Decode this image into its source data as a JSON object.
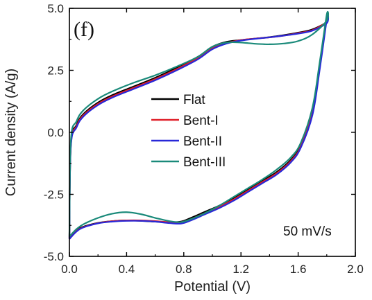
{
  "chart_data": {
    "type": "line",
    "title": "",
    "panel_label": "(f)",
    "xlabel": "Potential (V)",
    "ylabel": "Current density (A/g)",
    "xlim": [
      0.0,
      2.0
    ],
    "ylim": [
      -5.0,
      5.0
    ],
    "x_ticks": [
      0.0,
      0.4,
      0.8,
      1.2,
      1.6,
      2.0
    ],
    "x_tick_labels": [
      "0.0",
      "0.4",
      "0.8",
      "1.2",
      "1.6",
      "2.0"
    ],
    "y_ticks": [
      -5.0,
      -2.5,
      0.0,
      2.5,
      5.0
    ],
    "y_tick_labels": [
      "-5.0",
      "-2.5",
      "0.0",
      "2.5",
      "5.0"
    ],
    "grid": false,
    "legend_position": "center",
    "annotation": "50 mV/s",
    "series": [
      {
        "name": "Flat",
        "color": "#000000",
        "x": [
          0.0,
          0.01,
          0.05,
          0.1,
          0.2,
          0.3,
          0.45,
          0.6,
          0.75,
          0.9,
          1.0,
          1.1,
          1.2,
          1.3,
          1.4,
          1.5,
          1.6,
          1.7,
          1.8,
          1.8,
          1.75,
          1.7,
          1.62,
          1.55,
          1.45,
          1.35,
          1.25,
          1.15,
          1.05,
          0.95,
          0.85,
          0.78,
          0.7,
          0.6,
          0.5,
          0.4,
          0.3,
          0.2,
          0.1,
          0.05,
          0.0
        ],
        "y": [
          -4.25,
          -0.5,
          0.3,
          0.75,
          1.2,
          1.5,
          1.85,
          2.2,
          2.6,
          3.05,
          3.45,
          3.65,
          3.72,
          3.78,
          3.84,
          3.92,
          4.02,
          4.15,
          4.45,
          4.65,
          2.7,
          0.9,
          -0.5,
          -1.1,
          -1.6,
          -1.95,
          -2.3,
          -2.65,
          -2.95,
          -3.2,
          -3.45,
          -3.6,
          -3.62,
          -3.6,
          -3.57,
          -3.55,
          -3.58,
          -3.65,
          -3.8,
          -3.95,
          -4.25
        ]
      },
      {
        "name": "Bent-I",
        "color": "#e0202a",
        "x": [
          0.0,
          0.01,
          0.05,
          0.1,
          0.2,
          0.3,
          0.45,
          0.6,
          0.75,
          0.9,
          1.0,
          1.1,
          1.2,
          1.3,
          1.4,
          1.5,
          1.6,
          1.7,
          1.8,
          1.8,
          1.75,
          1.7,
          1.62,
          1.55,
          1.45,
          1.35,
          1.25,
          1.15,
          1.05,
          0.95,
          0.85,
          0.78,
          0.7,
          0.6,
          0.5,
          0.4,
          0.3,
          0.2,
          0.1,
          0.05,
          0.0
        ],
        "y": [
          -4.3,
          -0.55,
          0.25,
          0.7,
          1.15,
          1.45,
          1.8,
          2.15,
          2.55,
          3.0,
          3.4,
          3.6,
          3.72,
          3.78,
          3.83,
          3.9,
          4.0,
          4.12,
          4.45,
          4.6,
          2.6,
          0.8,
          -0.55,
          -1.15,
          -1.65,
          -2.0,
          -2.35,
          -2.7,
          -3.0,
          -3.25,
          -3.5,
          -3.62,
          -3.62,
          -3.58,
          -3.55,
          -3.55,
          -3.58,
          -3.66,
          -3.82,
          -3.98,
          -4.3
        ]
      },
      {
        "name": "Bent-II",
        "color": "#2828d8",
        "x": [
          0.0,
          0.01,
          0.05,
          0.1,
          0.2,
          0.3,
          0.45,
          0.6,
          0.75,
          0.9,
          1.0,
          1.1,
          1.2,
          1.3,
          1.4,
          1.5,
          1.6,
          1.7,
          1.8,
          1.8,
          1.75,
          1.7,
          1.62,
          1.55,
          1.45,
          1.35,
          1.25,
          1.15,
          1.05,
          0.95,
          0.85,
          0.78,
          0.7,
          0.6,
          0.5,
          0.4,
          0.3,
          0.2,
          0.1,
          0.05,
          0.0
        ],
        "y": [
          -4.3,
          -0.6,
          0.2,
          0.65,
          1.1,
          1.4,
          1.75,
          2.1,
          2.5,
          2.95,
          3.35,
          3.58,
          3.7,
          3.77,
          3.83,
          3.9,
          3.98,
          4.1,
          4.4,
          4.55,
          2.5,
          0.7,
          -0.6,
          -1.2,
          -1.7,
          -2.05,
          -2.4,
          -2.75,
          -3.05,
          -3.3,
          -3.55,
          -3.68,
          -3.66,
          -3.6,
          -3.57,
          -3.57,
          -3.6,
          -3.67,
          -3.83,
          -4.0,
          -4.3
        ]
      },
      {
        "name": "Bent-III",
        "color": "#1a8a7a",
        "x": [
          0.0,
          0.01,
          0.05,
          0.1,
          0.2,
          0.3,
          0.45,
          0.6,
          0.75,
          0.9,
          1.0,
          1.1,
          1.2,
          1.3,
          1.4,
          1.5,
          1.6,
          1.7,
          1.8,
          1.8,
          1.75,
          1.7,
          1.62,
          1.55,
          1.45,
          1.35,
          1.25,
          1.15,
          1.05,
          0.95,
          0.85,
          0.78,
          0.7,
          0.6,
          0.5,
          0.4,
          0.3,
          0.2,
          0.1,
          0.05,
          0.0
        ],
        "y": [
          -4.2,
          -0.35,
          0.45,
          0.9,
          1.35,
          1.65,
          2.0,
          2.3,
          2.65,
          3.05,
          3.45,
          3.62,
          3.62,
          3.57,
          3.55,
          3.58,
          3.68,
          3.95,
          4.5,
          4.75,
          2.8,
          1.0,
          -0.4,
          -1.0,
          -1.5,
          -1.9,
          -2.25,
          -2.6,
          -2.95,
          -3.25,
          -3.5,
          -3.62,
          -3.58,
          -3.45,
          -3.3,
          -3.22,
          -3.28,
          -3.45,
          -3.7,
          -3.9,
          -4.2
        ]
      }
    ]
  }
}
